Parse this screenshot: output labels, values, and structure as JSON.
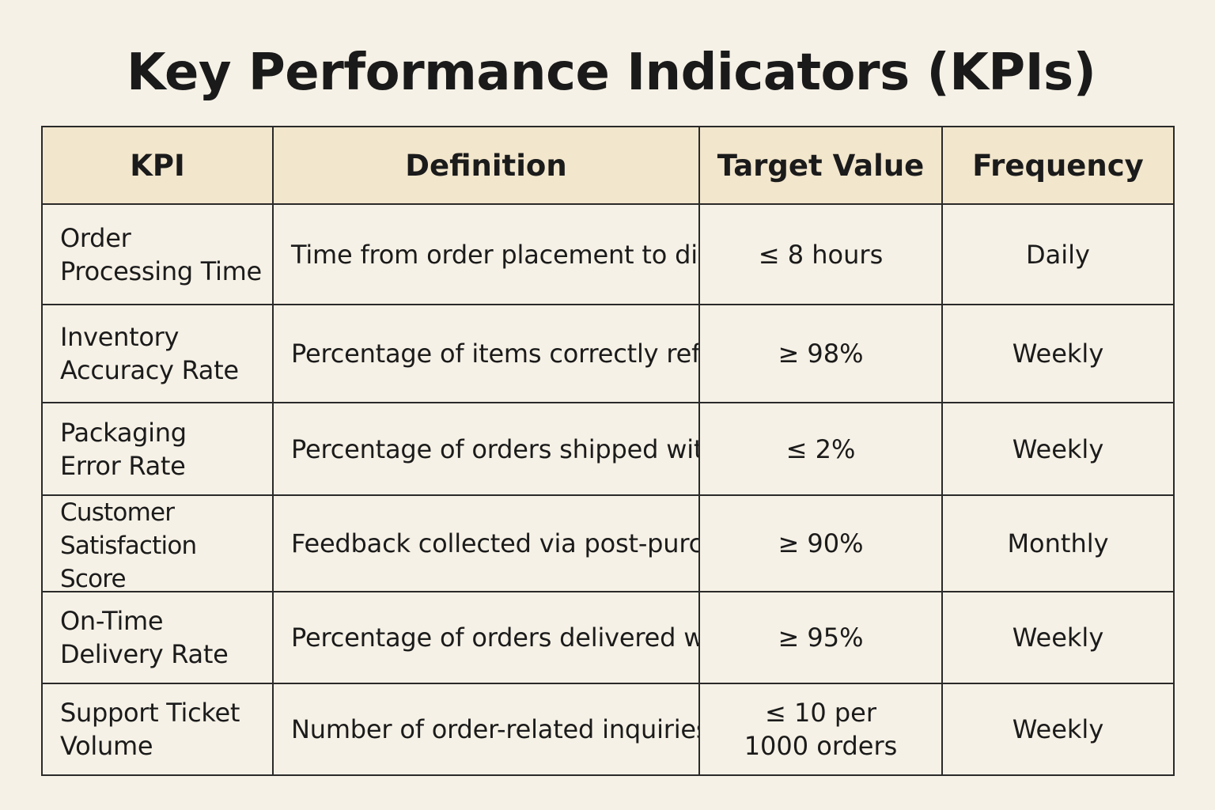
{
  "title": "Key Performance Indicators (KPIs)",
  "columns": [
    "KPI",
    "Definition",
    "Target Value",
    "Frequency"
  ],
  "rows": [
    {
      "kpi": "Order\nProcessing Time",
      "definition": "Time from order placement\nto dispatch",
      "target": "≤ 8 hours",
      "frequency": "Daily"
    },
    {
      "kpi": "Inventory\nAccuracy Rate",
      "definition": "Percentage of items correctly\nreflected in inventory system",
      "target": "≥ 98%",
      "frequency": "Weekly"
    },
    {
      "kpi": "Packaging\nError Rate",
      "definition": "Percentage of orders shipped\nwith incorrect or damaged items",
      "target": "≤ 2%",
      "frequency": "Weekly"
    },
    {
      "kpi": "Customer\nSatisfaction Score\n(CSAT)",
      "definition": "Feedback collected via\npost-purchase surveys",
      "target": "≥ 90%",
      "frequency": "Monthly"
    },
    {
      "kpi": "On-Time\nDelivery Rate",
      "definition": "Percentage of orders delivered\nwithin the promised timeframe",
      "target": "≥ 95%",
      "frequency": "Weekly"
    },
    {
      "kpi": "Support Ticket\nVolume",
      "definition": "Number of order-related\ninquiries/complaints received",
      "target": "≤ 10 per\n1000 orders",
      "frequency": "Weekly"
    }
  ]
}
